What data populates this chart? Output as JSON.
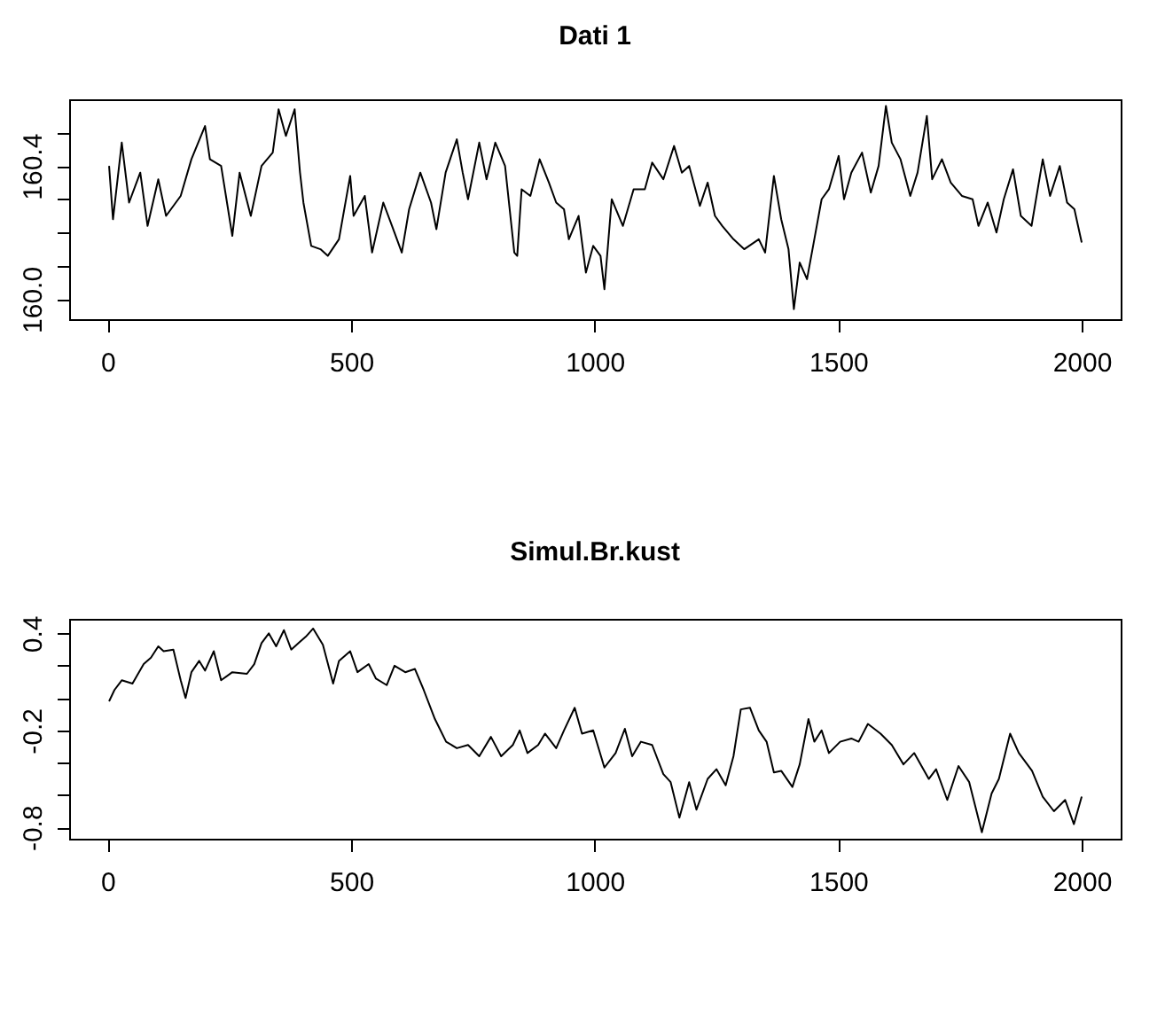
{
  "chart_data": [
    {
      "type": "line",
      "title": "Dati 1",
      "color": "#000000",
      "grid": false,
      "xlim": [
        -79,
        2080
      ],
      "xticks": [
        0,
        500,
        1000,
        1500,
        2000
      ],
      "ylim": [
        159.94,
        160.6
      ],
      "yticks": [
        {
          "value": 160.0,
          "label": "160.0"
        },
        {
          "value": 160.1,
          "label": null
        },
        {
          "value": 160.2,
          "label": null
        },
        {
          "value": 160.3,
          "label": null
        },
        {
          "value": 160.4,
          "label": "160.4"
        },
        {
          "value": 160.5,
          "label": null
        }
      ],
      "x": [
        3,
        11,
        29,
        44,
        67,
        82,
        104,
        120,
        150,
        172,
        200,
        210,
        233,
        256,
        271,
        294,
        316,
        339,
        351,
        366,
        384,
        395,
        402,
        418,
        437,
        452,
        475,
        498,
        505,
        528,
        543,
        566,
        589,
        604,
        619,
        642,
        664,
        675,
        694,
        717,
        729,
        740,
        763,
        778,
        796,
        816,
        835,
        841,
        850,
        868,
        887,
        906,
        921,
        937,
        947,
        967,
        982,
        997,
        1012,
        1020,
        1035,
        1058,
        1080,
        1103,
        1118,
        1141,
        1163,
        1179,
        1194,
        1216,
        1232,
        1247,
        1262,
        1285,
        1307,
        1337,
        1350,
        1368,
        1383,
        1398,
        1409,
        1421,
        1436,
        1451,
        1466,
        1481,
        1501,
        1512,
        1527,
        1549,
        1567,
        1583,
        1598,
        1610,
        1628,
        1648,
        1663,
        1682,
        1693,
        1713,
        1731,
        1754,
        1776,
        1788,
        1807,
        1825,
        1840,
        1859,
        1875,
        1897,
        1920,
        1935,
        1955,
        1970,
        1985,
        2000
      ],
      "values": [
        160.4,
        160.24,
        160.47,
        160.29,
        160.38,
        160.22,
        160.36,
        160.25,
        160.31,
        160.42,
        160.52,
        160.42,
        160.4,
        160.19,
        160.38,
        160.25,
        160.4,
        160.44,
        160.57,
        160.49,
        160.57,
        160.38,
        160.29,
        160.16,
        160.15,
        160.13,
        160.18,
        160.37,
        160.25,
        160.31,
        160.14,
        160.29,
        160.2,
        160.14,
        160.27,
        160.38,
        160.29,
        160.21,
        160.38,
        160.48,
        160.38,
        160.3,
        160.47,
        160.36,
        160.47,
        160.4,
        160.14,
        160.13,
        160.33,
        160.31,
        160.42,
        160.35,
        160.29,
        160.27,
        160.18,
        160.25,
        160.08,
        160.16,
        160.13,
        160.03,
        160.3,
        160.22,
        160.33,
        160.33,
        160.41,
        160.36,
        160.46,
        160.38,
        160.4,
        160.28,
        160.35,
        160.25,
        160.22,
        160.18,
        160.15,
        160.18,
        160.14,
        160.37,
        160.24,
        160.15,
        159.97,
        160.11,
        160.06,
        160.18,
        160.3,
        160.33,
        160.43,
        160.3,
        160.38,
        160.44,
        160.32,
        160.4,
        160.58,
        160.47,
        160.42,
        160.31,
        160.38,
        160.55,
        160.36,
        160.42,
        160.35,
        160.31,
        160.3,
        160.22,
        160.29,
        160.2,
        160.3,
        160.39,
        160.25,
        160.22,
        160.42,
        160.31,
        160.4,
        160.29,
        160.27,
        160.17
      ]
    },
    {
      "type": "line",
      "title": "Simul.Br.kust",
      "color": "#000000",
      "grid": false,
      "xlim": [
        -79,
        2080
      ],
      "xticks": [
        0,
        500,
        1000,
        1500,
        2000
      ],
      "ylim": [
        -0.87,
        0.49
      ],
      "yticks": [
        {
          "value": 0.4,
          "label": "0.4"
        },
        {
          "value": 0.2,
          "label": null
        },
        {
          "value": 0.0,
          "label": null
        },
        {
          "value": -0.2,
          "label": "-0.2"
        },
        {
          "value": -0.4,
          "label": null
        },
        {
          "value": -0.6,
          "label": null
        },
        {
          "value": -0.8,
          "label": "-0.8"
        }
      ],
      "x": [
        3,
        14,
        29,
        51,
        74,
        89,
        104,
        115,
        135,
        150,
        160,
        172,
        188,
        200,
        218,
        233,
        256,
        286,
        301,
        316,
        331,
        346,
        362,
        377,
        392,
        407,
        422,
        442,
        463,
        475,
        498,
        513,
        536,
        551,
        573,
        589,
        611,
        631,
        649,
        672,
        695,
        717,
        740,
        763,
        787,
        808,
        832,
        846,
        862,
        884,
        898,
        921,
        937,
        959,
        974,
        997,
        1020,
        1043,
        1062,
        1077,
        1095,
        1118,
        1141,
        1156,
        1174,
        1194,
        1209,
        1232,
        1250,
        1269,
        1285,
        1300,
        1319,
        1337,
        1353,
        1368,
        1383,
        1406,
        1421,
        1439,
        1451,
        1466,
        1481,
        1504,
        1527,
        1542,
        1561,
        1587,
        1610,
        1634,
        1656,
        1686,
        1701,
        1724,
        1747,
        1769,
        1795,
        1815,
        1830,
        1853,
        1871,
        1898,
        1920,
        1943,
        1966,
        1984,
        2000
      ],
      "values": [
        -0.02,
        0.05,
        0.11,
        0.09,
        0.21,
        0.25,
        0.32,
        0.29,
        0.3,
        0.11,
        0.0,
        0.16,
        0.23,
        0.17,
        0.29,
        0.11,
        0.16,
        0.15,
        0.21,
        0.34,
        0.4,
        0.32,
        0.42,
        0.3,
        0.34,
        0.38,
        0.43,
        0.33,
        0.09,
        0.23,
        0.29,
        0.16,
        0.21,
        0.12,
        0.08,
        0.2,
        0.16,
        0.18,
        0.05,
        -0.13,
        -0.27,
        -0.31,
        -0.29,
        -0.36,
        -0.24,
        -0.36,
        -0.29,
        -0.2,
        -0.34,
        -0.29,
        -0.22,
        -0.31,
        -0.2,
        -0.06,
        -0.22,
        -0.2,
        -0.43,
        -0.34,
        -0.19,
        -0.36,
        -0.27,
        -0.29,
        -0.47,
        -0.52,
        -0.74,
        -0.52,
        -0.69,
        -0.5,
        -0.44,
        -0.54,
        -0.36,
        -0.07,
        -0.06,
        -0.2,
        -0.27,
        -0.46,
        -0.45,
        -0.55,
        -0.41,
        -0.13,
        -0.27,
        -0.2,
        -0.34,
        -0.27,
        -0.25,
        -0.27,
        -0.16,
        -0.22,
        -0.29,
        -0.41,
        -0.34,
        -0.5,
        -0.44,
        -0.63,
        -0.42,
        -0.52,
        -0.83,
        -0.59,
        -0.5,
        -0.22,
        -0.34,
        -0.45,
        -0.61,
        -0.7,
        -0.63,
        -0.78,
        -0.61
      ]
    }
  ]
}
